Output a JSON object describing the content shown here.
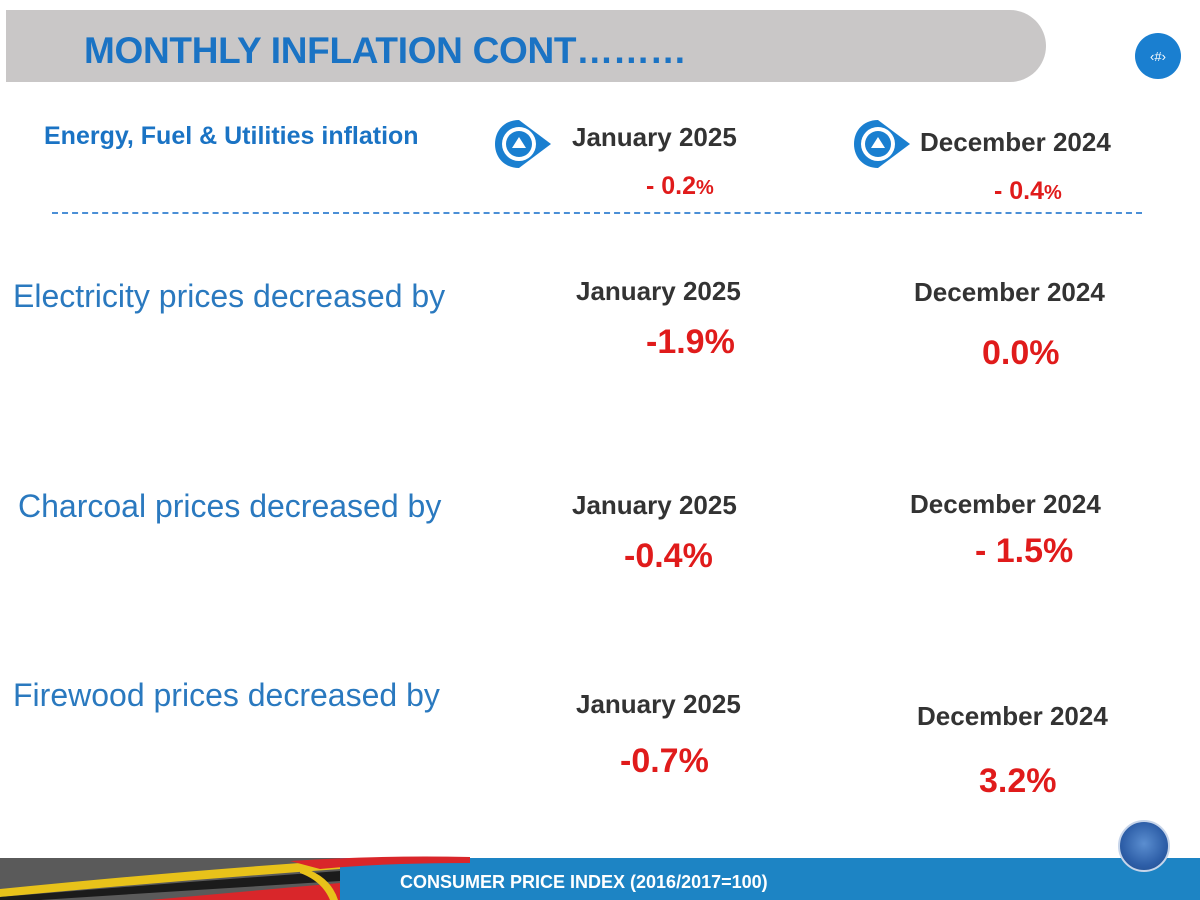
{
  "title": "MONTHLY INFLATION CONT………",
  "page_number": "‹#›",
  "energy": {
    "label": "Energy, Fuel & Utilities inflation",
    "jan_header": "January 2025",
    "dec_header": "December 2024",
    "jan_value": "- 0.2",
    "dec_value": "- 0.4",
    "pct": "%"
  },
  "rows": [
    {
      "label": "Electricity prices decreased by",
      "jan_header": "January 2025",
      "jan_value": "-1.9%",
      "dec_header": "December 2024",
      "dec_value": "0.0%"
    },
    {
      "label": "Charcoal prices decreased by",
      "jan_header": "January 2025",
      "jan_value": "-0.4%",
      "dec_header": "December 2024",
      "dec_value": "- 1.5%"
    },
    {
      "label": "Firewood prices decreased by",
      "jan_header": "January 2025",
      "jan_value": "-0.7%",
      "dec_header": "December 2024",
      "dec_value": "3.2%"
    }
  ],
  "footer": "CONSUMER PRICE INDEX (2016/2017=100)",
  "colors": {
    "title_blue": "#1a73c4",
    "value_red": "#e01b1b",
    "footer_blue": "#1d84c4"
  }
}
